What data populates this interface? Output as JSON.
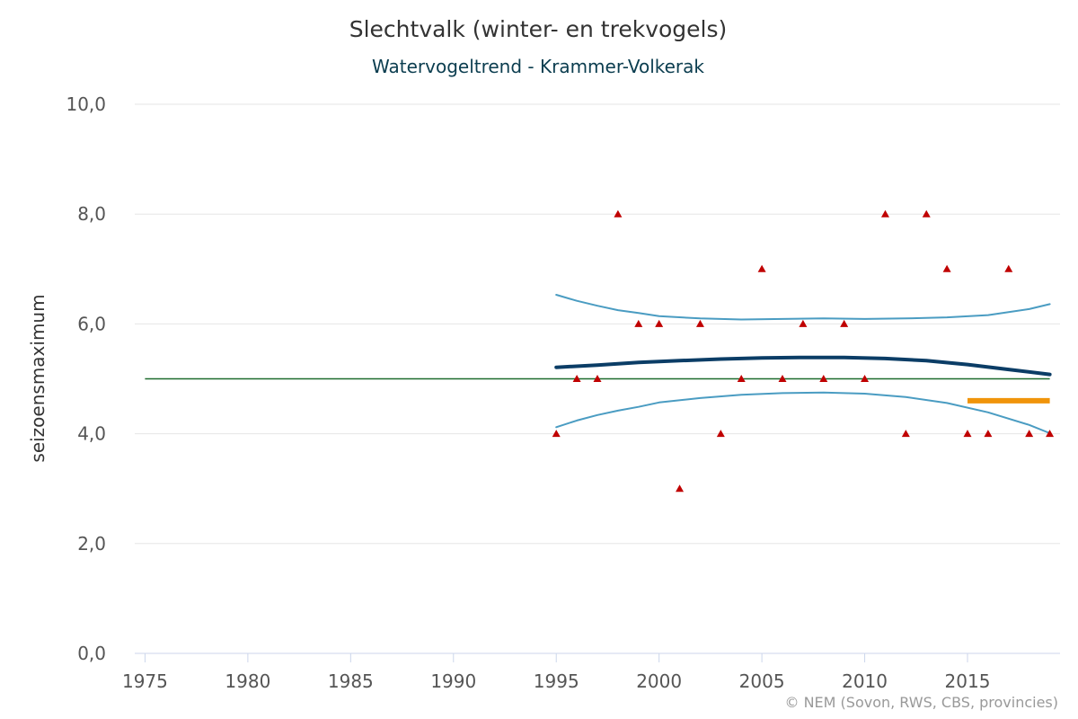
{
  "chart_data": {
    "type": "line",
    "title": "Slechtvalk (winter- en trekvogels)",
    "subtitle": "Watervogeltrend - Krammer-Volkerak",
    "ylabel": "seizoensmaximum",
    "xlabel": "",
    "credits": "© NEM (Sovon, RWS, CBS, provincies)",
    "xlim": [
      1974.5,
      2019.5
    ],
    "ylim": [
      0,
      10
    ],
    "x_ticks": [
      1975,
      1980,
      1985,
      1990,
      1995,
      2000,
      2005,
      2010,
      2015
    ],
    "x_tick_labels": [
      "1975",
      "1980",
      "1985",
      "1990",
      "1995",
      "2000",
      "2005",
      "2010",
      "2015"
    ],
    "y_ticks": [
      0,
      2,
      4,
      6,
      8,
      10
    ],
    "y_tick_labels": [
      "0,0",
      "2,0",
      "4,0",
      "6,0",
      "8,0",
      "10,0"
    ],
    "grid": true,
    "colors": {
      "trend": "#0b3d66",
      "ci": "#4a9cc2",
      "reference": "#1d6b2e",
      "recent": "#f0940a",
      "counts": "#c00000",
      "grid": "#e6e6e6",
      "axis": "#ccd6eb",
      "title": "#333333",
      "subtitle": "#0b3d4f",
      "tick_text": "#555555",
      "credits": "#999999"
    },
    "series": [
      {
        "name": "tellingen",
        "kind": "markers",
        "marker": "triangle",
        "x": [
          1995,
          1996,
          1997,
          1998,
          1999,
          2000,
          2001,
          2002,
          2003,
          2004,
          2005,
          2006,
          2007,
          2008,
          2009,
          2010,
          2011,
          2012,
          2013,
          2014,
          2015,
          2016,
          2017,
          2018,
          2019
        ],
        "values": [
          4,
          5,
          5,
          8,
          6,
          6,
          3,
          6,
          4,
          5,
          7,
          5,
          6,
          5,
          6,
          5,
          8,
          4,
          8,
          7,
          4,
          4,
          7,
          4,
          4
        ]
      },
      {
        "name": "trend",
        "kind": "line",
        "x": [
          1995,
          1997,
          1999,
          2001,
          2003,
          2005,
          2007,
          2008,
          2009,
          2011,
          2013,
          2015,
          2017,
          2019
        ],
        "values": [
          5.21,
          5.25,
          5.3,
          5.33,
          5.36,
          5.38,
          5.39,
          5.39,
          5.39,
          5.37,
          5.33,
          5.26,
          5.17,
          5.08
        ]
      },
      {
        "name": "betrouwbaarheid boven",
        "kind": "line",
        "x": [
          1995,
          1996,
          1997,
          1998,
          1999,
          2000,
          2002,
          2004,
          2006,
          2008,
          2010,
          2012,
          2014,
          2016,
          2018,
          2019
        ],
        "values": [
          6.53,
          6.42,
          6.33,
          6.25,
          6.2,
          6.14,
          6.1,
          6.08,
          6.09,
          6.1,
          6.09,
          6.1,
          6.12,
          6.16,
          6.27,
          6.36
        ]
      },
      {
        "name": "betrouwbaarheid onder",
        "kind": "line",
        "x": [
          1995,
          1996,
          1997,
          1998,
          1999,
          2000,
          2002,
          2004,
          2006,
          2008,
          2010,
          2012,
          2014,
          2016,
          2018,
          2019
        ],
        "values": [
          4.12,
          4.24,
          4.34,
          4.42,
          4.49,
          4.57,
          4.65,
          4.71,
          4.74,
          4.75,
          4.73,
          4.67,
          4.56,
          4.39,
          4.16,
          4.01
        ]
      },
      {
        "name": "referentie",
        "kind": "line",
        "x": [
          1975,
          2019
        ],
        "values": [
          5,
          5
        ]
      },
      {
        "name": "recent gemiddelde",
        "kind": "line",
        "x": [
          2015,
          2019
        ],
        "values": [
          4.6,
          4.6
        ]
      }
    ]
  }
}
